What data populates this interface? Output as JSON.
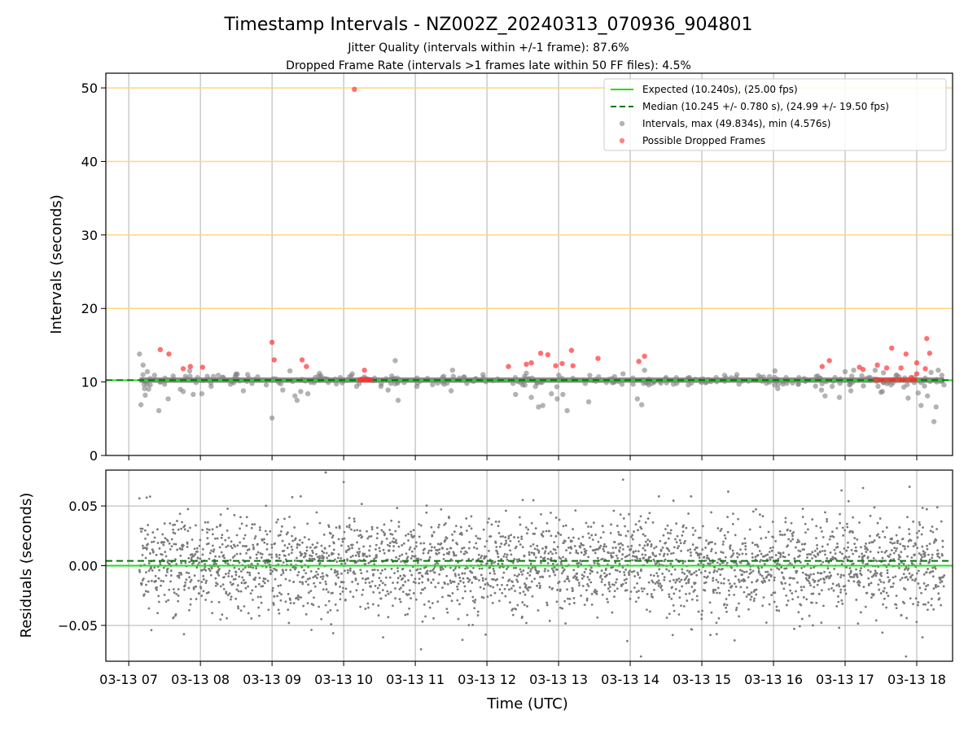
{
  "chart_data": [
    {
      "type": "scatter",
      "title": "Timestamp Intervals - NZ002Z_20240313_070936_904801",
      "subtitle_lines": [
        "Jitter Quality (intervals within +/-1 frame): 87.6%",
        "Dropped Frame Rate (intervals >1 frames late within 50 FF files): 4.5%"
      ],
      "xlabel": "",
      "ylabel": "Intervals (seconds)",
      "x_unit": "hours UTC on 2024-03-13",
      "xlim": [
        6.68,
        18.5
      ],
      "ylim": [
        0,
        52
      ],
      "yticks": [
        0,
        10,
        20,
        30,
        40,
        50
      ],
      "y_reference_lines": [
        20,
        30,
        40,
        50
      ],
      "x_grid": true,
      "legend_position": "upper-right",
      "legend": [
        {
          "label": "Expected (10.240s), (25.00 fps)",
          "style": "solid-line",
          "color": "#22dd22"
        },
        {
          "label": "Median (10.245 +/- 0.780 s), (24.99 +/- 19.50 fps)",
          "style": "dashed-line",
          "color": "#007700"
        },
        {
          "label": "Intervals, max (49.834s), min (4.576s)",
          "style": "marker",
          "color": "#808080"
        },
        {
          "label": "Possible Dropped Frames",
          "style": "marker",
          "color": "#ff3333"
        }
      ],
      "expected_value": 10.24,
      "median_value": 10.245,
      "series": [
        {
          "name": "Intervals, max (49.834s), min (4.576s)",
          "color": "#808080",
          "points": [
            [
              7.15,
              13.8
            ],
            [
              7.17,
              6.9
            ],
            [
              7.2,
              12.3
            ],
            [
              7.22,
              9.1
            ],
            [
              7.23,
              8.2
            ],
            [
              7.26,
              11.4
            ],
            [
              7.3,
              9.6
            ],
            [
              7.36,
              10.9
            ],
            [
              7.42,
              6.1
            ],
            [
              7.5,
              9.7
            ],
            [
              7.55,
              7.7
            ],
            [
              7.62,
              10.8
            ],
            [
              7.72,
              9.0
            ],
            [
              7.76,
              8.7
            ],
            [
              7.85,
              11.5
            ],
            [
              7.9,
              8.3
            ],
            [
              7.96,
              10.6
            ],
            [
              8.02,
              8.4
            ],
            [
              8.15,
              9.4
            ],
            [
              8.25,
              10.9
            ],
            [
              8.32,
              10.6
            ],
            [
              8.42,
              9.7
            ],
            [
              8.5,
              11.1
            ],
            [
              8.6,
              8.8
            ],
            [
              8.66,
              11.0
            ],
            [
              8.72,
              9.8
            ],
            [
              8.8,
              10.7
            ],
            [
              8.92,
              9.6
            ],
            [
              9.0,
              5.1
            ],
            [
              9.06,
              10.4
            ],
            [
              9.15,
              8.9
            ],
            [
              9.25,
              11.5
            ],
            [
              9.32,
              8.1
            ],
            [
              9.35,
              7.5
            ],
            [
              9.4,
              8.7
            ],
            [
              9.45,
              10.2
            ],
            [
              9.5,
              8.4
            ],
            [
              9.65,
              10.8
            ],
            [
              9.75,
              10.4
            ],
            [
              10.12,
              11.1
            ],
            [
              10.18,
              9.4
            ],
            [
              10.3,
              10.5
            ],
            [
              10.52,
              9.4
            ],
            [
              10.62,
              8.9
            ],
            [
              10.72,
              12.9
            ],
            [
              10.76,
              7.5
            ],
            [
              11.5,
              8.8
            ],
            [
              11.52,
              11.6
            ],
            [
              11.72,
              9.8
            ],
            [
              11.95,
              10.6
            ],
            [
              12.15,
              10.4
            ],
            [
              12.4,
              8.3
            ],
            [
              12.5,
              9.6
            ],
            [
              12.55,
              11.2
            ],
            [
              12.62,
              7.9
            ],
            [
              12.72,
              6.6
            ],
            [
              12.78,
              6.8
            ],
            [
              12.9,
              8.4
            ],
            [
              12.98,
              7.7
            ],
            [
              13.06,
              8.3
            ],
            [
              13.12,
              6.1
            ],
            [
              13.2,
              10.5
            ],
            [
              13.42,
              7.3
            ],
            [
              13.48,
              10.2
            ],
            [
              13.56,
              10.7
            ],
            [
              13.75,
              9.9
            ],
            [
              13.9,
              11.1
            ],
            [
              14.04,
              9.7
            ],
            [
              14.1,
              7.7
            ],
            [
              14.16,
              6.9
            ],
            [
              14.2,
              11.6
            ],
            [
              14.26,
              9.6
            ],
            [
              14.5,
              10.6
            ],
            [
              14.65,
              9.8
            ],
            [
              14.8,
              10.5
            ],
            [
              15.05,
              9.9
            ],
            [
              15.2,
              10.6
            ],
            [
              15.5,
              10.3
            ],
            [
              16.02,
              11.5
            ],
            [
              16.06,
              9.1
            ],
            [
              16.62,
              10.8
            ],
            [
              16.67,
              8.9
            ],
            [
              16.72,
              8.1
            ],
            [
              16.82,
              9.4
            ],
            [
              16.86,
              10.6
            ],
            [
              16.92,
              7.9
            ],
            [
              17.0,
              11.4
            ],
            [
              17.06,
              9.6
            ],
            [
              17.08,
              8.8
            ],
            [
              17.12,
              11.6
            ],
            [
              17.35,
              10.6
            ],
            [
              17.42,
              11.6
            ],
            [
              17.46,
              9.4
            ],
            [
              17.5,
              8.6
            ],
            [
              17.52,
              8.7
            ],
            [
              17.56,
              10.2
            ],
            [
              17.64,
              9.6
            ],
            [
              17.72,
              10.9
            ],
            [
              17.82,
              9.3
            ],
            [
              17.88,
              7.8
            ],
            [
              17.96,
              10.6
            ],
            [
              18.02,
              8.5
            ],
            [
              18.06,
              6.8
            ],
            [
              18.1,
              10.2
            ],
            [
              18.15,
              8.1
            ],
            [
              18.2,
              11.3
            ],
            [
              18.24,
              4.6
            ],
            [
              18.27,
              6.6
            ],
            [
              18.3,
              11.6
            ],
            [
              18.35,
              10.9
            ],
            [
              18.38,
              9.6
            ]
          ]
        },
        {
          "name": "Possible Dropped Frames",
          "color": "#ff3333",
          "points": [
            [
              7.44,
              14.4
            ],
            [
              7.56,
              13.8
            ],
            [
              7.76,
              11.8
            ],
            [
              7.86,
              12.1
            ],
            [
              8.03,
              12.0
            ],
            [
              9.0,
              15.4
            ],
            [
              9.03,
              13.0
            ],
            [
              9.42,
              13.0
            ],
            [
              9.48,
              12.1
            ],
            [
              10.15,
              49.8
            ],
            [
              10.22,
              10.3
            ],
            [
              10.24,
              10.3
            ],
            [
              10.26,
              10.3
            ],
            [
              10.28,
              10.3
            ],
            [
              10.3,
              10.3
            ],
            [
              10.32,
              10.3
            ],
            [
              10.34,
              10.3
            ],
            [
              10.36,
              10.3
            ],
            [
              10.38,
              10.3
            ],
            [
              10.29,
              11.6
            ],
            [
              12.3,
              12.1
            ],
            [
              12.55,
              12.4
            ],
            [
              12.62,
              12.6
            ],
            [
              12.75,
              13.9
            ],
            [
              12.85,
              13.7
            ],
            [
              12.96,
              12.2
            ],
            [
              13.05,
              12.5
            ],
            [
              13.18,
              14.3
            ],
            [
              13.2,
              12.2
            ],
            [
              13.55,
              13.2
            ],
            [
              14.12,
              12.8
            ],
            [
              14.2,
              13.5
            ],
            [
              16.68,
              12.1
            ],
            [
              16.78,
              12.9
            ],
            [
              17.2,
              12.0
            ],
            [
              17.25,
              11.7
            ],
            [
              17.45,
              12.3
            ],
            [
              17.58,
              11.9
            ],
            [
              17.65,
              14.6
            ],
            [
              17.78,
              11.9
            ],
            [
              17.85,
              13.8
            ],
            [
              18.0,
              12.6
            ],
            [
              18.14,
              15.9
            ],
            [
              18.18,
              13.9
            ],
            [
              18.12,
              11.8
            ],
            [
              18.0,
              11.1
            ],
            [
              17.92,
              10.6
            ],
            [
              17.42,
              10.3
            ],
            [
              17.47,
              10.3
            ],
            [
              17.52,
              10.3
            ],
            [
              17.57,
              10.3
            ],
            [
              17.62,
              10.3
            ],
            [
              17.67,
              10.3
            ],
            [
              17.72,
              10.3
            ],
            [
              17.77,
              10.3
            ],
            [
              17.82,
              10.3
            ],
            [
              17.87,
              10.3
            ],
            [
              17.92,
              10.3
            ],
            [
              17.97,
              10.3
            ]
          ]
        }
      ]
    },
    {
      "type": "scatter",
      "title": "",
      "xlabel": "Time (UTC)",
      "ylabel": "Residuals (seconds)",
      "xlim": [
        6.68,
        18.5
      ],
      "ylim": [
        -0.08,
        0.08
      ],
      "yticks": [
        -0.05,
        0.0,
        0.05
      ],
      "ytick_labels": [
        "−0.05",
        "0.00",
        "0.05"
      ],
      "xticks": [
        7,
        8,
        9,
        10,
        11,
        12,
        13,
        14,
        15,
        16,
        17,
        18
      ],
      "xtick_labels": [
        "03-13 07",
        "03-13 08",
        "03-13 09",
        "03-13 10",
        "03-13 11",
        "03-13 12",
        "03-13 13",
        "03-13 14",
        "03-13 15",
        "03-13 16",
        "03-13 17",
        "03-13 18"
      ],
      "grid": true,
      "expected_residual": 0.0,
      "median_residual": 0.004,
      "residual_x_range": [
        7.15,
        18.38
      ],
      "residual_point_count": 2900,
      "residual_spread_sd": 0.021,
      "residual_drift_center": 0.012,
      "series": [
        {
          "name": "",
          "color": "#7a7a7a",
          "outliers": [
            [
              7.25,
              0.057
            ],
            [
              7.62,
              -0.044
            ],
            [
              8.28,
              -0.045
            ],
            [
              9.1,
              -0.04
            ],
            [
              9.4,
              0.058
            ],
            [
              9.75,
              0.078
            ],
            [
              10.0,
              0.07
            ],
            [
              10.55,
              -0.06
            ],
            [
              11.08,
              -0.07
            ],
            [
              12.5,
              0.055
            ],
            [
              12.55,
              -0.048
            ],
            [
              13.9,
              0.072
            ],
            [
              14.15,
              -0.076
            ],
            [
              14.4,
              0.058
            ],
            [
              14.85,
              0.058
            ],
            [
              15.12,
              -0.058
            ],
            [
              16.55,
              -0.05
            ],
            [
              16.95,
              0.063
            ],
            [
              17.25,
              0.065
            ],
            [
              17.52,
              -0.056
            ],
            [
              17.85,
              -0.076
            ],
            [
              17.9,
              0.066
            ],
            [
              18.08,
              -0.06
            ]
          ]
        }
      ]
    }
  ]
}
